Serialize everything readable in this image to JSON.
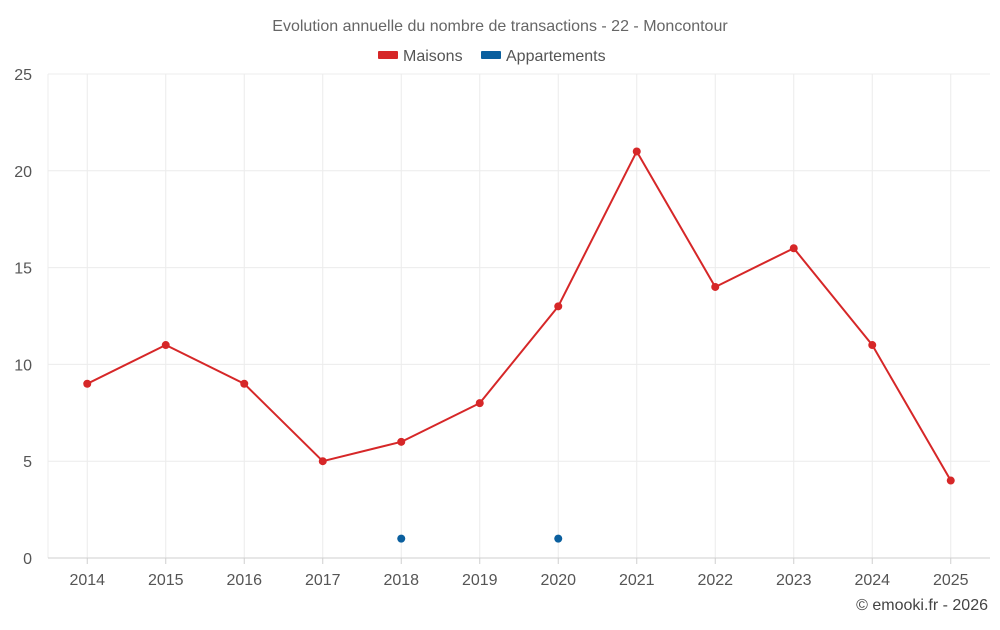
{
  "chart_data": {
    "type": "line",
    "title": "Evolution annuelle du nombre de transactions - 22 - Moncontour",
    "xlabel": "",
    "ylabel": "",
    "categories": [
      "2014",
      "2015",
      "2016",
      "2017",
      "2018",
      "2019",
      "2020",
      "2021",
      "2022",
      "2023",
      "2024",
      "2025"
    ],
    "ylim": [
      0,
      25
    ],
    "yticks": [
      "0",
      "5",
      "10",
      "15",
      "20",
      "25"
    ],
    "grid": true,
    "legend_position": "top-center",
    "series": [
      {
        "name": "Maisons",
        "color": "#d62728",
        "values": [
          9,
          11,
          9,
          5,
          6,
          8,
          13,
          21,
          14,
          16,
          11,
          4
        ]
      },
      {
        "name": "Appartements",
        "color": "#0a5f9e",
        "values": [
          null,
          null,
          null,
          null,
          1,
          null,
          1,
          null,
          null,
          null,
          null,
          null
        ]
      }
    ]
  },
  "credit": "© emooki.fr - 2026"
}
